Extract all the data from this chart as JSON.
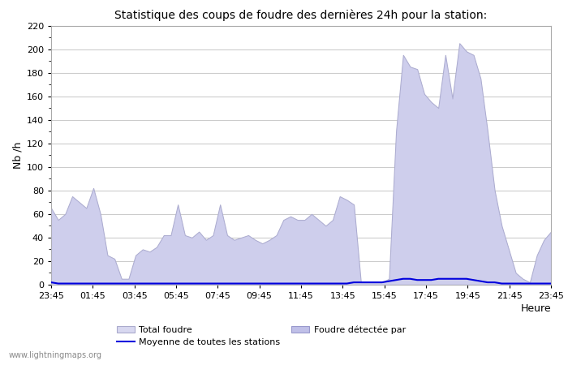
{
  "title": "Statistique des coups de foudre des dernières 24h pour la station:",
  "xlabel": "Heure",
  "ylabel": "Nb /h",
  "ylim": [
    0,
    220
  ],
  "yticks": [
    0,
    20,
    40,
    60,
    80,
    100,
    120,
    140,
    160,
    180,
    200,
    220
  ],
  "x_labels": [
    "23:45",
    "01:45",
    "03:45",
    "05:45",
    "07:45",
    "09:45",
    "11:45",
    "13:45",
    "15:45",
    "17:45",
    "19:45",
    "21:45",
    "23:45"
  ],
  "background_color": "#ffffff",
  "plot_bg_color": "#ffffff",
  "grid_color": "#cccccc",
  "fill_color_total": "#d8d8f0",
  "fill_color_detected": "#c0c0e8",
  "line_color_moyenne": "#0000dd",
  "legend_label_total": "Total foudre",
  "legend_label_detected": "Foudre détectée par",
  "legend_label_moyenne": "Moyenne de toutes les stations",
  "watermark": "www.lightningmaps.org",
  "total_foudre": [
    65,
    55,
    60,
    75,
    70,
    65,
    82,
    60,
    25,
    22,
    5,
    5,
    25,
    30,
    28,
    32,
    42,
    42,
    68,
    42,
    40,
    45,
    38,
    42,
    68,
    42,
    38,
    40,
    42,
    38,
    35,
    38,
    42,
    55,
    58,
    55,
    55,
    60,
    55,
    50,
    55,
    75,
    72,
    68,
    2,
    2,
    2,
    2,
    5,
    130,
    195,
    185,
    183,
    162,
    155,
    150,
    195,
    158,
    205,
    198,
    195,
    175,
    130,
    80,
    50,
    30,
    10,
    5,
    2,
    25,
    38,
    45
  ],
  "moyenne": [
    2,
    1,
    1,
    1,
    1,
    1,
    1,
    1,
    1,
    1,
    1,
    1,
    1,
    1,
    1,
    1,
    1,
    1,
    1,
    1,
    1,
    1,
    1,
    1,
    1,
    1,
    1,
    1,
    1,
    1,
    1,
    1,
    1,
    1,
    1,
    1,
    1,
    1,
    1,
    1,
    1,
    1,
    1,
    2,
    2,
    2,
    2,
    2,
    3,
    4,
    5,
    5,
    4,
    4,
    4,
    5,
    5,
    5,
    5,
    5,
    4,
    3,
    2,
    2,
    1,
    1,
    1,
    1,
    1,
    1,
    1,
    1
  ]
}
